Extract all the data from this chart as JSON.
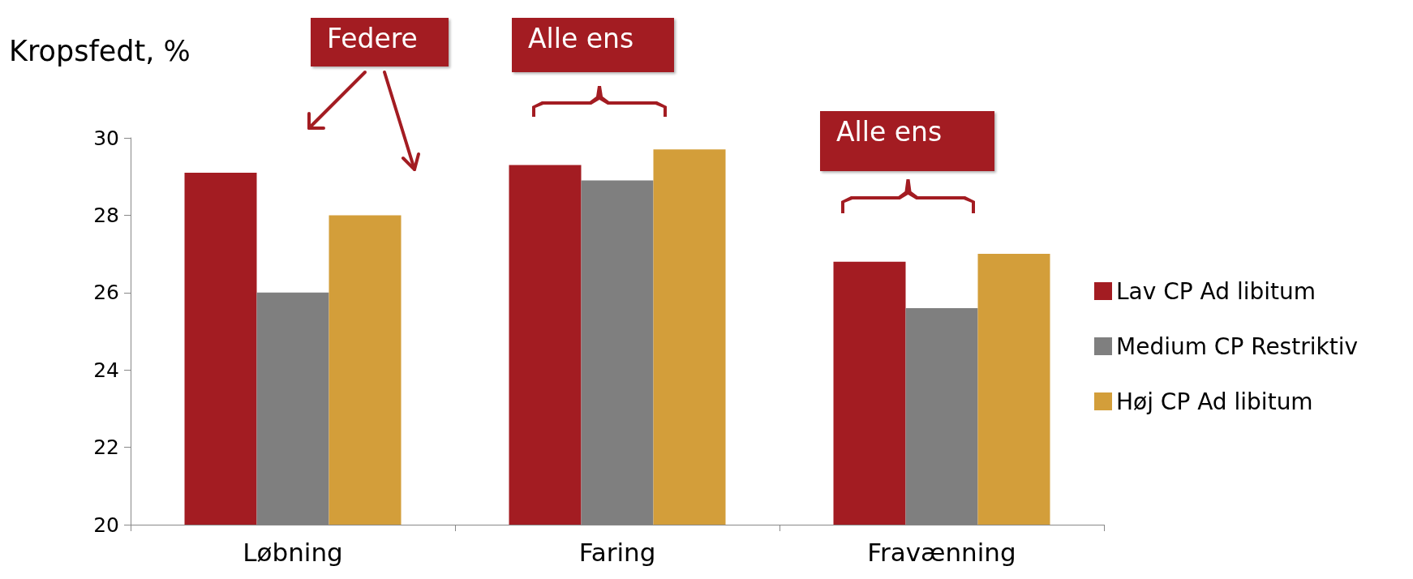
{
  "chart_data": {
    "type": "bar",
    "ylabel": "Kropsfedt, %",
    "categories": [
      "Løbning",
      "Faring",
      "Fravænning"
    ],
    "series": [
      {
        "name": "Lav CP Ad libitum",
        "color": "#a31c22",
        "values": [
          29.1,
          29.3,
          26.8
        ]
      },
      {
        "name": "Medium CP Restriktiv",
        "color": "#7f7f7f",
        "values": [
          26.0,
          28.9,
          25.6
        ]
      },
      {
        "name": "Høj CP Ad libitum",
        "color": "#d39e3a",
        "values": [
          28.0,
          29.7,
          27.0
        ]
      }
    ],
    "ylim": [
      20,
      30
    ],
    "yticks": [
      20,
      22,
      24,
      26,
      28,
      30
    ],
    "grid": false,
    "legend": "right",
    "annotations": [
      "Federe",
      "Alle ens",
      "Alle ens"
    ]
  }
}
